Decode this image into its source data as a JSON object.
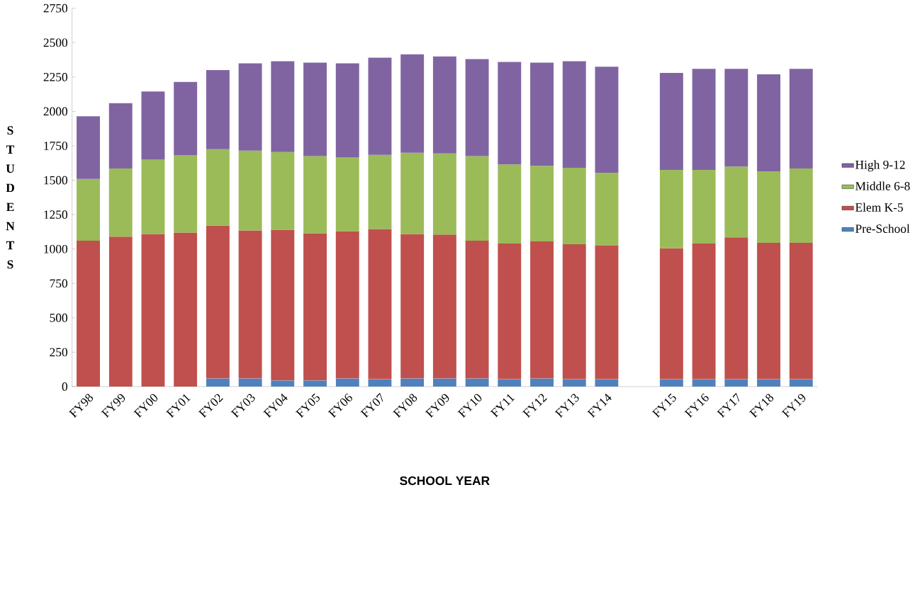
{
  "chart_data": {
    "type": "bar",
    "stacked": true,
    "xlabel": "SCHOOL YEAR",
    "ylabel": "S T U D E N T S",
    "categories": [
      "FY98",
      "FY99",
      "FY00",
      "FY01",
      "FY02",
      "FY03",
      "FY04",
      "FY05",
      "FY06",
      "FY07",
      "FY08",
      "FY09",
      "FY10",
      "FY11",
      "FY12",
      "FY13",
      "FY14",
      null,
      "FY15",
      "FY16",
      "FY17",
      "FY18",
      "FY19"
    ],
    "series": [
      {
        "name": "Pre-School",
        "color": "#4f81bd",
        "values": [
          null,
          null,
          null,
          null,
          60,
          60,
          45,
          45,
          60,
          55,
          60,
          60,
          60,
          55,
          60,
          55,
          55,
          null,
          55,
          55,
          55,
          55,
          55
        ]
      },
      {
        "name": "Elem K-5",
        "color": "#c0504d",
        "values": [
          1060,
          1090,
          1110,
          1120,
          1110,
          1075,
          1095,
          1070,
          1070,
          1090,
          1050,
          1045,
          1000,
          985,
          995,
          980,
          970,
          null,
          950,
          985,
          1030,
          990,
          990
        ]
      },
      {
        "name": "Middle 6-8",
        "color": "#9bbb59",
        "values": [
          450,
          495,
          540,
          560,
          555,
          580,
          565,
          560,
          535,
          540,
          590,
          590,
          615,
          575,
          550,
          555,
          530,
          null,
          570,
          535,
          515,
          520,
          540
        ]
      },
      {
        "name": "High 9-12",
        "color": "#8064a2",
        "values": [
          455,
          475,
          495,
          535,
          575,
          635,
          660,
          680,
          685,
          705,
          715,
          705,
          705,
          745,
          750,
          775,
          770,
          null,
          705,
          735,
          710,
          705,
          725
        ]
      }
    ],
    "ylim": [
      0,
      2750
    ],
    "yticks": [
      0,
      250,
      500,
      750,
      1000,
      1250,
      1500,
      1750,
      2000,
      2250,
      2500,
      2750
    ],
    "grid": false,
    "legend": "right"
  }
}
